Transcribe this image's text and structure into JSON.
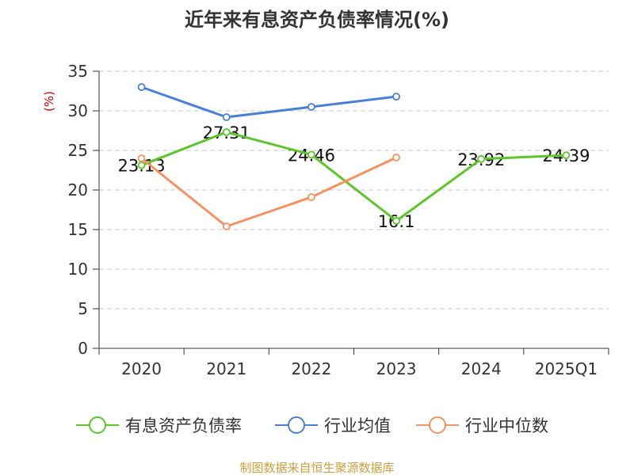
{
  "chart_data": {
    "type": "line",
    "title": "近年来有息资产负债率情况(%)",
    "ylabel": "(%)",
    "categories": [
      "2020",
      "2021",
      "2022",
      "2023",
      "2024",
      "2025Q1"
    ],
    "ylim": [
      0,
      35
    ],
    "yticks": [
      0,
      5,
      10,
      15,
      20,
      25,
      30,
      35
    ],
    "grid": true,
    "legend_position": "bottom",
    "series": [
      {
        "name": "有息资产负债率",
        "color": "#5cc52a",
        "values": [
          23.13,
          27.31,
          24.46,
          16.1,
          23.92,
          24.39
        ],
        "labels": [
          "23.13",
          "27.31",
          "24.46",
          "16.1",
          "23.92",
          "24.39"
        ]
      },
      {
        "name": "行业均值",
        "color": "#4a7fd9",
        "values": [
          33.0,
          29.2,
          30.5,
          31.8,
          null,
          null
        ]
      },
      {
        "name": "行业中位数",
        "color": "#f59261",
        "values": [
          24.0,
          15.4,
          19.1,
          24.1,
          null,
          null
        ]
      }
    ]
  },
  "source_note": "制图数据来自恒生聚源数据库"
}
